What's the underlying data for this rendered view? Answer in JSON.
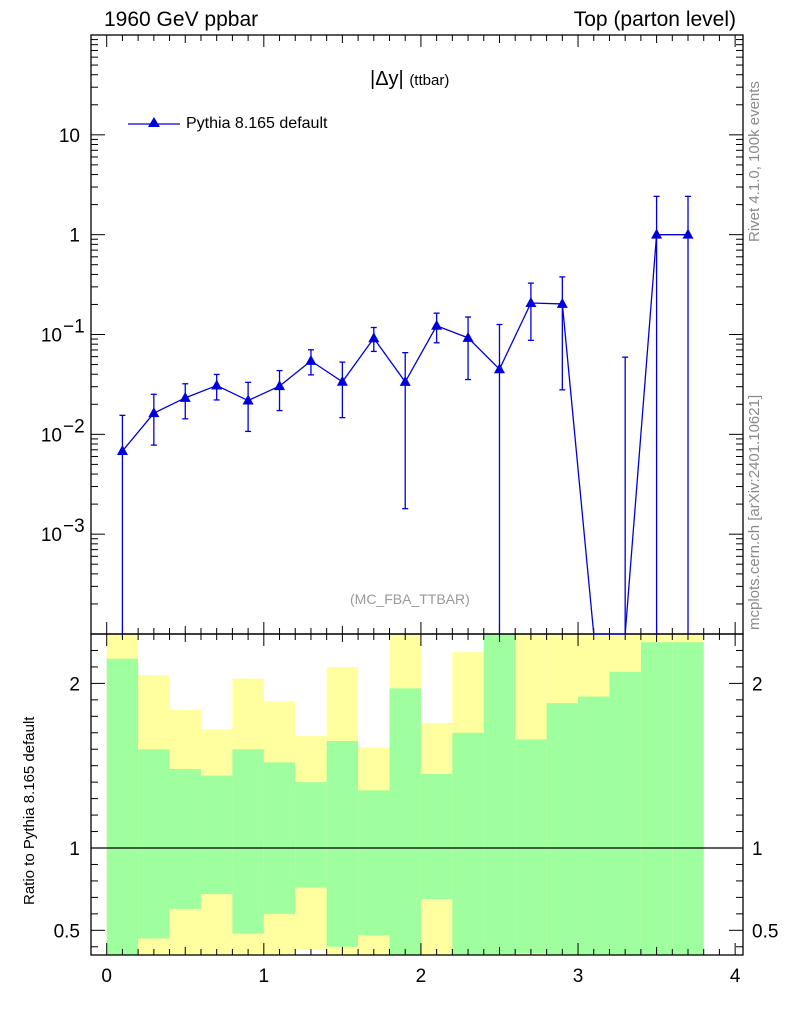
{
  "header": {
    "left": "1960 GeV ppbar",
    "right": "Top (parton level)"
  },
  "side_labels": {
    "rivet": "Rivet 4.1.0,  100k events",
    "mcplots": "mcplots.cern.ch [arXiv:2401.10621]"
  },
  "watermark": "(MC_FBA_TTBAR)",
  "chart_data": {
    "type": "line",
    "title": "|Δy|",
    "title_suffix": "(ttbar)",
    "legend": [
      "Pythia 8.165 default"
    ],
    "x_range": [
      -0.1,
      4.05
    ],
    "y_range_log": [
      0.0001,
      100
    ],
    "ratio_ylabel": "Ratio to Pythia 8.165 default",
    "ratio_y_range": [
      0.35,
      2.3
    ],
    "x_ticks": [
      0,
      1,
      2,
      3,
      4
    ],
    "y_ticks": [
      {
        "v": 10,
        "label": "10"
      },
      {
        "v": 1,
        "label": "1"
      },
      {
        "v": 0.1,
        "label": "10",
        "exp": "−1"
      },
      {
        "v": 0.01,
        "label": "10",
        "exp": "−2"
      },
      {
        "v": 0.001,
        "label": "10",
        "exp": "−3"
      }
    ],
    "ratio_ticks": [
      {
        "v": 2,
        "label": "2"
      },
      {
        "v": 1,
        "label": "1"
      },
      {
        "v": 0.5,
        "label": "0.5"
      }
    ],
    "series": [
      {
        "name": "Pythia 8.165 default",
        "color": "#0000dd",
        "points": [
          {
            "x": 0.1,
            "y": 0.0068,
            "lo": 1e-05,
            "hi": 0.0155
          },
          {
            "x": 0.3,
            "y": 0.0163,
            "lo": 0.0078,
            "hi": 0.0252
          },
          {
            "x": 0.5,
            "y": 0.0232,
            "lo": 0.0143,
            "hi": 0.0321
          },
          {
            "x": 0.7,
            "y": 0.0308,
            "lo": 0.0221,
            "hi": 0.0398
          },
          {
            "x": 0.9,
            "y": 0.0218,
            "lo": 0.0107,
            "hi": 0.0332
          },
          {
            "x": 1.1,
            "y": 0.0304,
            "lo": 0.0173,
            "hi": 0.0435
          },
          {
            "x": 1.3,
            "y": 0.0544,
            "lo": 0.0394,
            "hi": 0.0703
          },
          {
            "x": 1.5,
            "y": 0.0336,
            "lo": 0.0147,
            "hi": 0.0529
          },
          {
            "x": 1.7,
            "y": 0.0918,
            "lo": 0.0677,
            "hi": 0.1175
          },
          {
            "x": 1.9,
            "y": 0.0335,
            "lo": 0.0018,
            "hi": 0.0658
          },
          {
            "x": 2.1,
            "y": 0.1222,
            "lo": 0.0826,
            "hi": 0.1636
          },
          {
            "x": 2.3,
            "y": 0.0926,
            "lo": 0.0354,
            "hi": 0.1497
          },
          {
            "x": 2.5,
            "y": 0.0449,
            "lo": 1e-05,
            "hi": 0.126
          },
          {
            "x": 2.7,
            "y": 0.2068,
            "lo": 0.0874,
            "hi": 0.327
          },
          {
            "x": 2.9,
            "y": 0.2024,
            "lo": 0.0279,
            "hi": 0.3775
          },
          {
            "x": 3.1,
            "y": 1e-05,
            "lo": 1e-05,
            "hi": 1e-05
          },
          {
            "x": 3.3,
            "y": 1e-05,
            "lo": 1e-05,
            "hi": 0.0593
          },
          {
            "x": 3.5,
            "y": 1.0,
            "lo": 1e-05,
            "hi": 2.42
          },
          {
            "x": 3.7,
            "y": 1.0,
            "lo": 1e-05,
            "hi": 2.42
          }
        ]
      }
    ],
    "ratio_bands": [
      {
        "x0": 0.0,
        "x1": 0.2,
        "g_lo": 0.0,
        "g_hi": 2.15,
        "y_lo": 0.0,
        "y_hi": 2.5
      },
      {
        "x0": 0.2,
        "x1": 0.4,
        "g_lo": 0.45,
        "g_hi": 1.6,
        "y_lo": 0.0,
        "y_hi": 2.05
      },
      {
        "x0": 0.4,
        "x1": 0.6,
        "g_lo": 0.63,
        "g_hi": 1.48,
        "y_lo": 0.0,
        "y_hi": 1.84
      },
      {
        "x0": 0.6,
        "x1": 0.8,
        "g_lo": 0.72,
        "g_hi": 1.44,
        "y_lo": 0.0,
        "y_hi": 1.72
      },
      {
        "x0": 0.8,
        "x1": 1.0,
        "g_lo": 0.48,
        "g_hi": 1.6,
        "y_lo": 0.0,
        "y_hi": 2.03
      },
      {
        "x0": 1.0,
        "x1": 1.2,
        "g_lo": 0.6,
        "g_hi": 1.52,
        "y_lo": 0.0,
        "y_hi": 1.89
      },
      {
        "x0": 1.2,
        "x1": 1.4,
        "g_lo": 0.76,
        "g_hi": 1.4,
        "y_lo": 0.38,
        "y_hi": 1.68
      },
      {
        "x0": 1.4,
        "x1": 1.6,
        "g_lo": 0.4,
        "g_hi": 1.65,
        "y_lo": 0.0,
        "y_hi": 2.1
      },
      {
        "x0": 1.6,
        "x1": 1.8,
        "g_lo": 0.47,
        "g_hi": 1.35,
        "y_lo": 0.0,
        "y_hi": 1.61
      },
      {
        "x0": 1.8,
        "x1": 2.0,
        "g_lo": 0.0,
        "g_hi": 1.97,
        "y_lo": 0.0,
        "y_hi": 2.5
      },
      {
        "x0": 2.0,
        "x1": 2.2,
        "g_lo": 0.69,
        "g_hi": 1.45,
        "y_lo": 0.0,
        "y_hi": 1.76
      },
      {
        "x0": 2.2,
        "x1": 2.4,
        "g_lo": 0.0,
        "g_hi": 1.7,
        "y_lo": 0.0,
        "y_hi": 2.19
      },
      {
        "x0": 2.4,
        "x1": 2.6,
        "g_lo": 0.0,
        "g_hi": 2.5,
        "y_lo": 0.0,
        "y_hi": 2.5
      },
      {
        "x0": 2.6,
        "x1": 2.8,
        "g_lo": 0.36,
        "g_hi": 1.66,
        "y_lo": 0.0,
        "y_hi": 2.31
      },
      {
        "x0": 2.8,
        "x1": 3.0,
        "g_lo": 0.0,
        "g_hi": 1.88,
        "y_lo": 0.0,
        "y_hi": 2.5
      },
      {
        "x0": 3.0,
        "x1": 3.2,
        "g_lo": 0.0,
        "g_hi": 1.92,
        "y_lo": 0.0,
        "y_hi": 2.5
      },
      {
        "x0": 3.2,
        "x1": 3.4,
        "g_lo": 0.0,
        "g_hi": 2.07,
        "y_lo": 0.0,
        "y_hi": 2.5
      },
      {
        "x0": 3.4,
        "x1": 3.6,
        "g_lo": 0.0,
        "g_hi": 2.25,
        "y_lo": 0.0,
        "y_hi": 2.5
      },
      {
        "x0": 3.6,
        "x1": 3.8,
        "g_lo": 0.0,
        "g_hi": 2.25,
        "y_lo": 0.0,
        "y_hi": 2.5
      }
    ],
    "colors": {
      "green": "#9fff9f",
      "yellow": "#ffff9f",
      "line": "#0000dd"
    }
  }
}
